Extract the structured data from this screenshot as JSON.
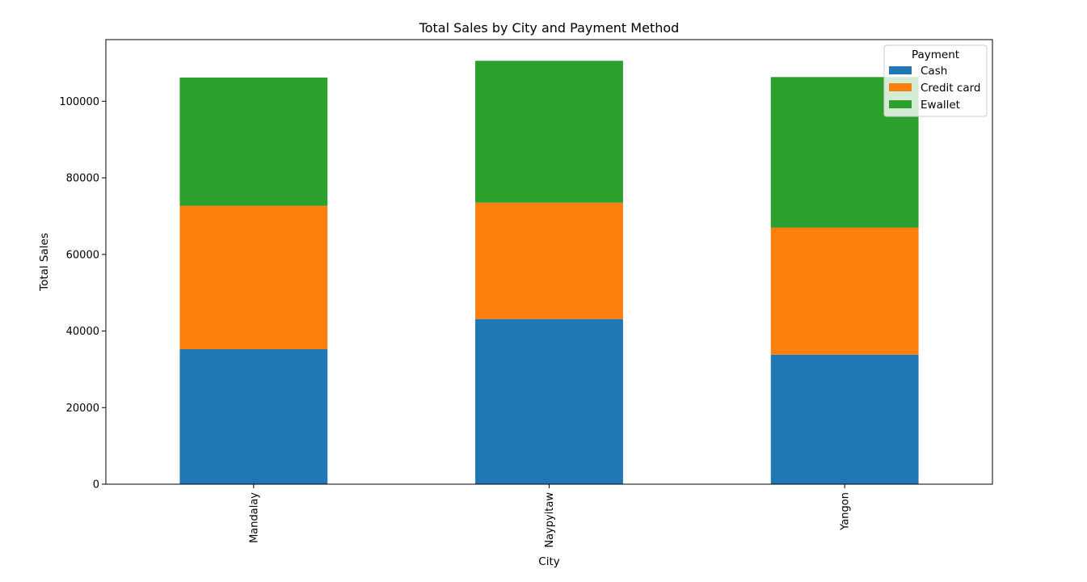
{
  "chart_data": {
    "type": "bar",
    "stacked": true,
    "title": "Total Sales by City and Payment Method",
    "xlabel": "City",
    "ylabel": "Total Sales",
    "categories": [
      "Mandalay",
      "Naypyitaw",
      "Yangon"
    ],
    "series": [
      {
        "name": "Cash",
        "values": [
          35250,
          43130,
          33820
        ],
        "color": "#1f77b4"
      },
      {
        "name": "Credit card",
        "values": [
          37450,
          30380,
          33200
        ],
        "color": "#ff7f0e"
      },
      {
        "name": "Ewallet",
        "values": [
          33500,
          37060,
          39300
        ],
        "color": "#2ca02c"
      }
    ],
    "ylim": [
      0,
      116100
    ],
    "yticks": [
      0,
      20000,
      40000,
      60000,
      80000,
      100000
    ],
    "ytick_labels": [
      "0",
      "20000",
      "40000",
      "60000",
      "80000",
      "100000"
    ],
    "legend_title": "Payment",
    "legend_position": "top-right",
    "grid": false
  }
}
